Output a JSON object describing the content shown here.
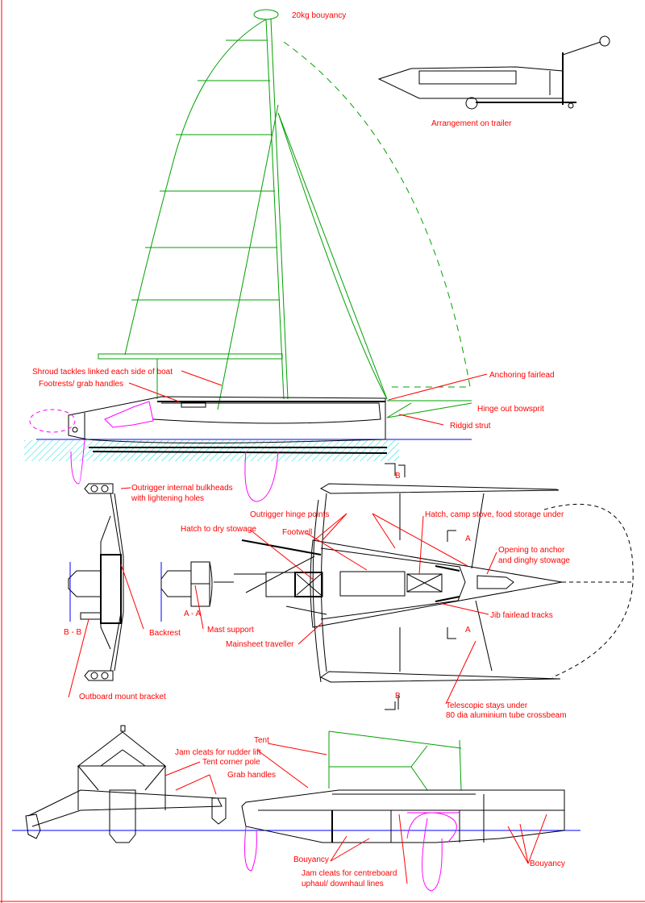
{
  "colors": {
    "annotation": "#ff0000",
    "rig": "#00a000",
    "foils": "#ff00ff",
    "waterline": "#0000ff",
    "water_hatch": "#00e0e0",
    "structure": "#000000"
  },
  "side_view": {
    "buoyancy_label": "20kg bouyancy",
    "shroud_label": "Shroud tackles linked each side of boat",
    "footrest_label": "Footrests/ grab handles",
    "fairlead_label": "Anchoring fairlead",
    "bowsprit_label": "Hinge out bowsprit",
    "strut_label": "Ridgid strut",
    "section_marker": "B"
  },
  "trailer_view": {
    "label": "Arrangement on trailer"
  },
  "sections": {
    "bb_label": "B - B",
    "aa_label": "A - A",
    "bulkhead_label_1": "Outrigger internal bulkheads",
    "bulkhead_label_2": "with lightening holes",
    "backrest_label": "Backrest",
    "mast_support_label": "Mast support",
    "outboard_label": "Outboard mount bracket"
  },
  "plan_view": {
    "hinge_label": "Outrigger hinge points",
    "hatch_stove_label": "Hatch, camp stove, food storage under",
    "hatch_dry_label": "Hatch to dry stowage",
    "footwell_label": "Footwell",
    "section_a_top": "A",
    "section_a_bottom": "A",
    "opening_label_1": "Opening to anchor",
    "opening_label_2": "and dinghy stowage",
    "jib_tracks_label": "Jib fairlead tracks",
    "traveller_label": "Mainsheet traveller",
    "section_b": "B",
    "stays_label_1": "Telescopic stays under",
    "stays_label_2": "80 dia aluminium tube crossbeam"
  },
  "camping_view": {
    "tent_label": "Tent",
    "jam_rudder_label": "Jam cleats for rudder lift",
    "tent_pole_label": "Tent corner pole",
    "grab_label": "Grab handles",
    "buoyancy_label_left": "Bouyancy",
    "jam_cb_label_1": "Jam cleats for centreboard",
    "jam_cb_label_2": "uphaul/ downhaul lines",
    "buoyancy_label_right": "Bouyancy"
  }
}
